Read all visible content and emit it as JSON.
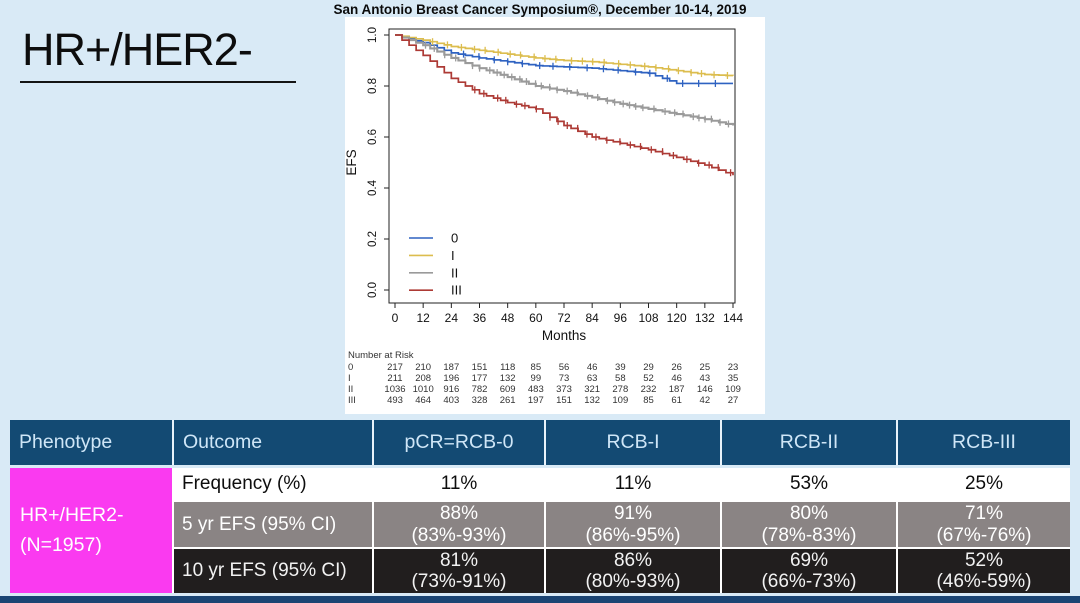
{
  "header": {
    "conference_title": "San Antonio Breast Cancer Symposium®, December 10-14, 2019",
    "phenotype_heading": "HR+/HER2-"
  },
  "chart_data": {
    "type": "line",
    "variant": "kaplan-meier-step",
    "xlabel": "Months",
    "ylabel": "EFS",
    "xlim": [
      0,
      144
    ],
    "ylim": [
      0.0,
      1.0
    ],
    "x_ticks": [
      0,
      12,
      24,
      36,
      48,
      60,
      72,
      84,
      96,
      108,
      120,
      132,
      144
    ],
    "y_tick_labels": [
      "0.0",
      "0.2",
      "0.4",
      "0.6",
      "0.8",
      "1.0"
    ],
    "grid": false,
    "legend_position": "inside-bottom-left",
    "x": [
      0,
      12,
      24,
      36,
      48,
      60,
      72,
      84,
      96,
      108,
      120,
      132,
      144
    ],
    "series": [
      {
        "name": "0",
        "color": "#2e62c1",
        "values": [
          1.0,
          0.97,
          0.93,
          0.91,
          0.895,
          0.88,
          0.875,
          0.87,
          0.86,
          0.85,
          0.81,
          0.81,
          0.81
        ]
      },
      {
        "name": "I",
        "color": "#dcbd4e",
        "values": [
          1.0,
          0.98,
          0.955,
          0.94,
          0.925,
          0.91,
          0.9,
          0.895,
          0.885,
          0.875,
          0.86,
          0.845,
          0.84
        ]
      },
      {
        "name": "II",
        "color": "#9a9a9a",
        "values": [
          1.0,
          0.96,
          0.91,
          0.87,
          0.835,
          0.8,
          0.78,
          0.755,
          0.73,
          0.71,
          0.69,
          0.67,
          0.645
        ]
      },
      {
        "name": "III",
        "color": "#ad3a35",
        "values": [
          1.0,
          0.92,
          0.83,
          0.77,
          0.735,
          0.71,
          0.645,
          0.6,
          0.575,
          0.55,
          0.52,
          0.49,
          0.45
        ]
      }
    ],
    "number_at_risk": {
      "label": "Number at Risk",
      "rows": [
        {
          "group": "0",
          "counts": [
            217,
            210,
            187,
            151,
            118,
            85,
            56,
            46,
            39,
            29,
            26,
            25,
            23
          ]
        },
        {
          "group": "I",
          "counts": [
            211,
            208,
            196,
            177,
            132,
            99,
            73,
            63,
            58,
            52,
            46,
            43,
            35
          ]
        },
        {
          "group": "II",
          "counts": [
            1036,
            1010,
            916,
            782,
            609,
            483,
            373,
            321,
            278,
            232,
            187,
            146,
            109
          ]
        },
        {
          "group": "III",
          "counts": [
            493,
            464,
            403,
            328,
            261,
            197,
            151,
            132,
            109,
            85,
            61,
            42,
            27
          ]
        }
      ]
    }
  },
  "table": {
    "headers": [
      "Phenotype",
      "Outcome",
      "pCR=RCB-0",
      "RCB-I",
      "RCB-II",
      "RCB-III"
    ],
    "phenotype": {
      "line1": "HR+/HER2-",
      "line2": "(N=1957)"
    },
    "rows": [
      {
        "outcome": "Frequency (%)",
        "values": [
          "11%",
          "11%",
          "53%",
          "25%"
        ]
      },
      {
        "outcome": "5 yr EFS (95% CI)",
        "values": [
          "88%",
          "91%",
          "80%",
          "71%"
        ],
        "ci": [
          "(83%-93%)",
          "(86%-95%)",
          "(78%-83%)",
          "(67%-76%)"
        ]
      },
      {
        "outcome": "10 yr EFS (95% CI)",
        "values": [
          "81%",
          "86%",
          "69%",
          "52%"
        ],
        "ci": [
          "(73%-91%)",
          "(80%-93%)",
          "(66%-73%)",
          "(46%-59%)"
        ]
      }
    ]
  },
  "colors": {
    "background": "#d9eaf6",
    "header_bar": "#134a73",
    "phenotype_cell": "#fa3af0",
    "gray_row": "#8a8484",
    "dark_row": "#211e1e",
    "bottom_bar": "#1a4473"
  }
}
